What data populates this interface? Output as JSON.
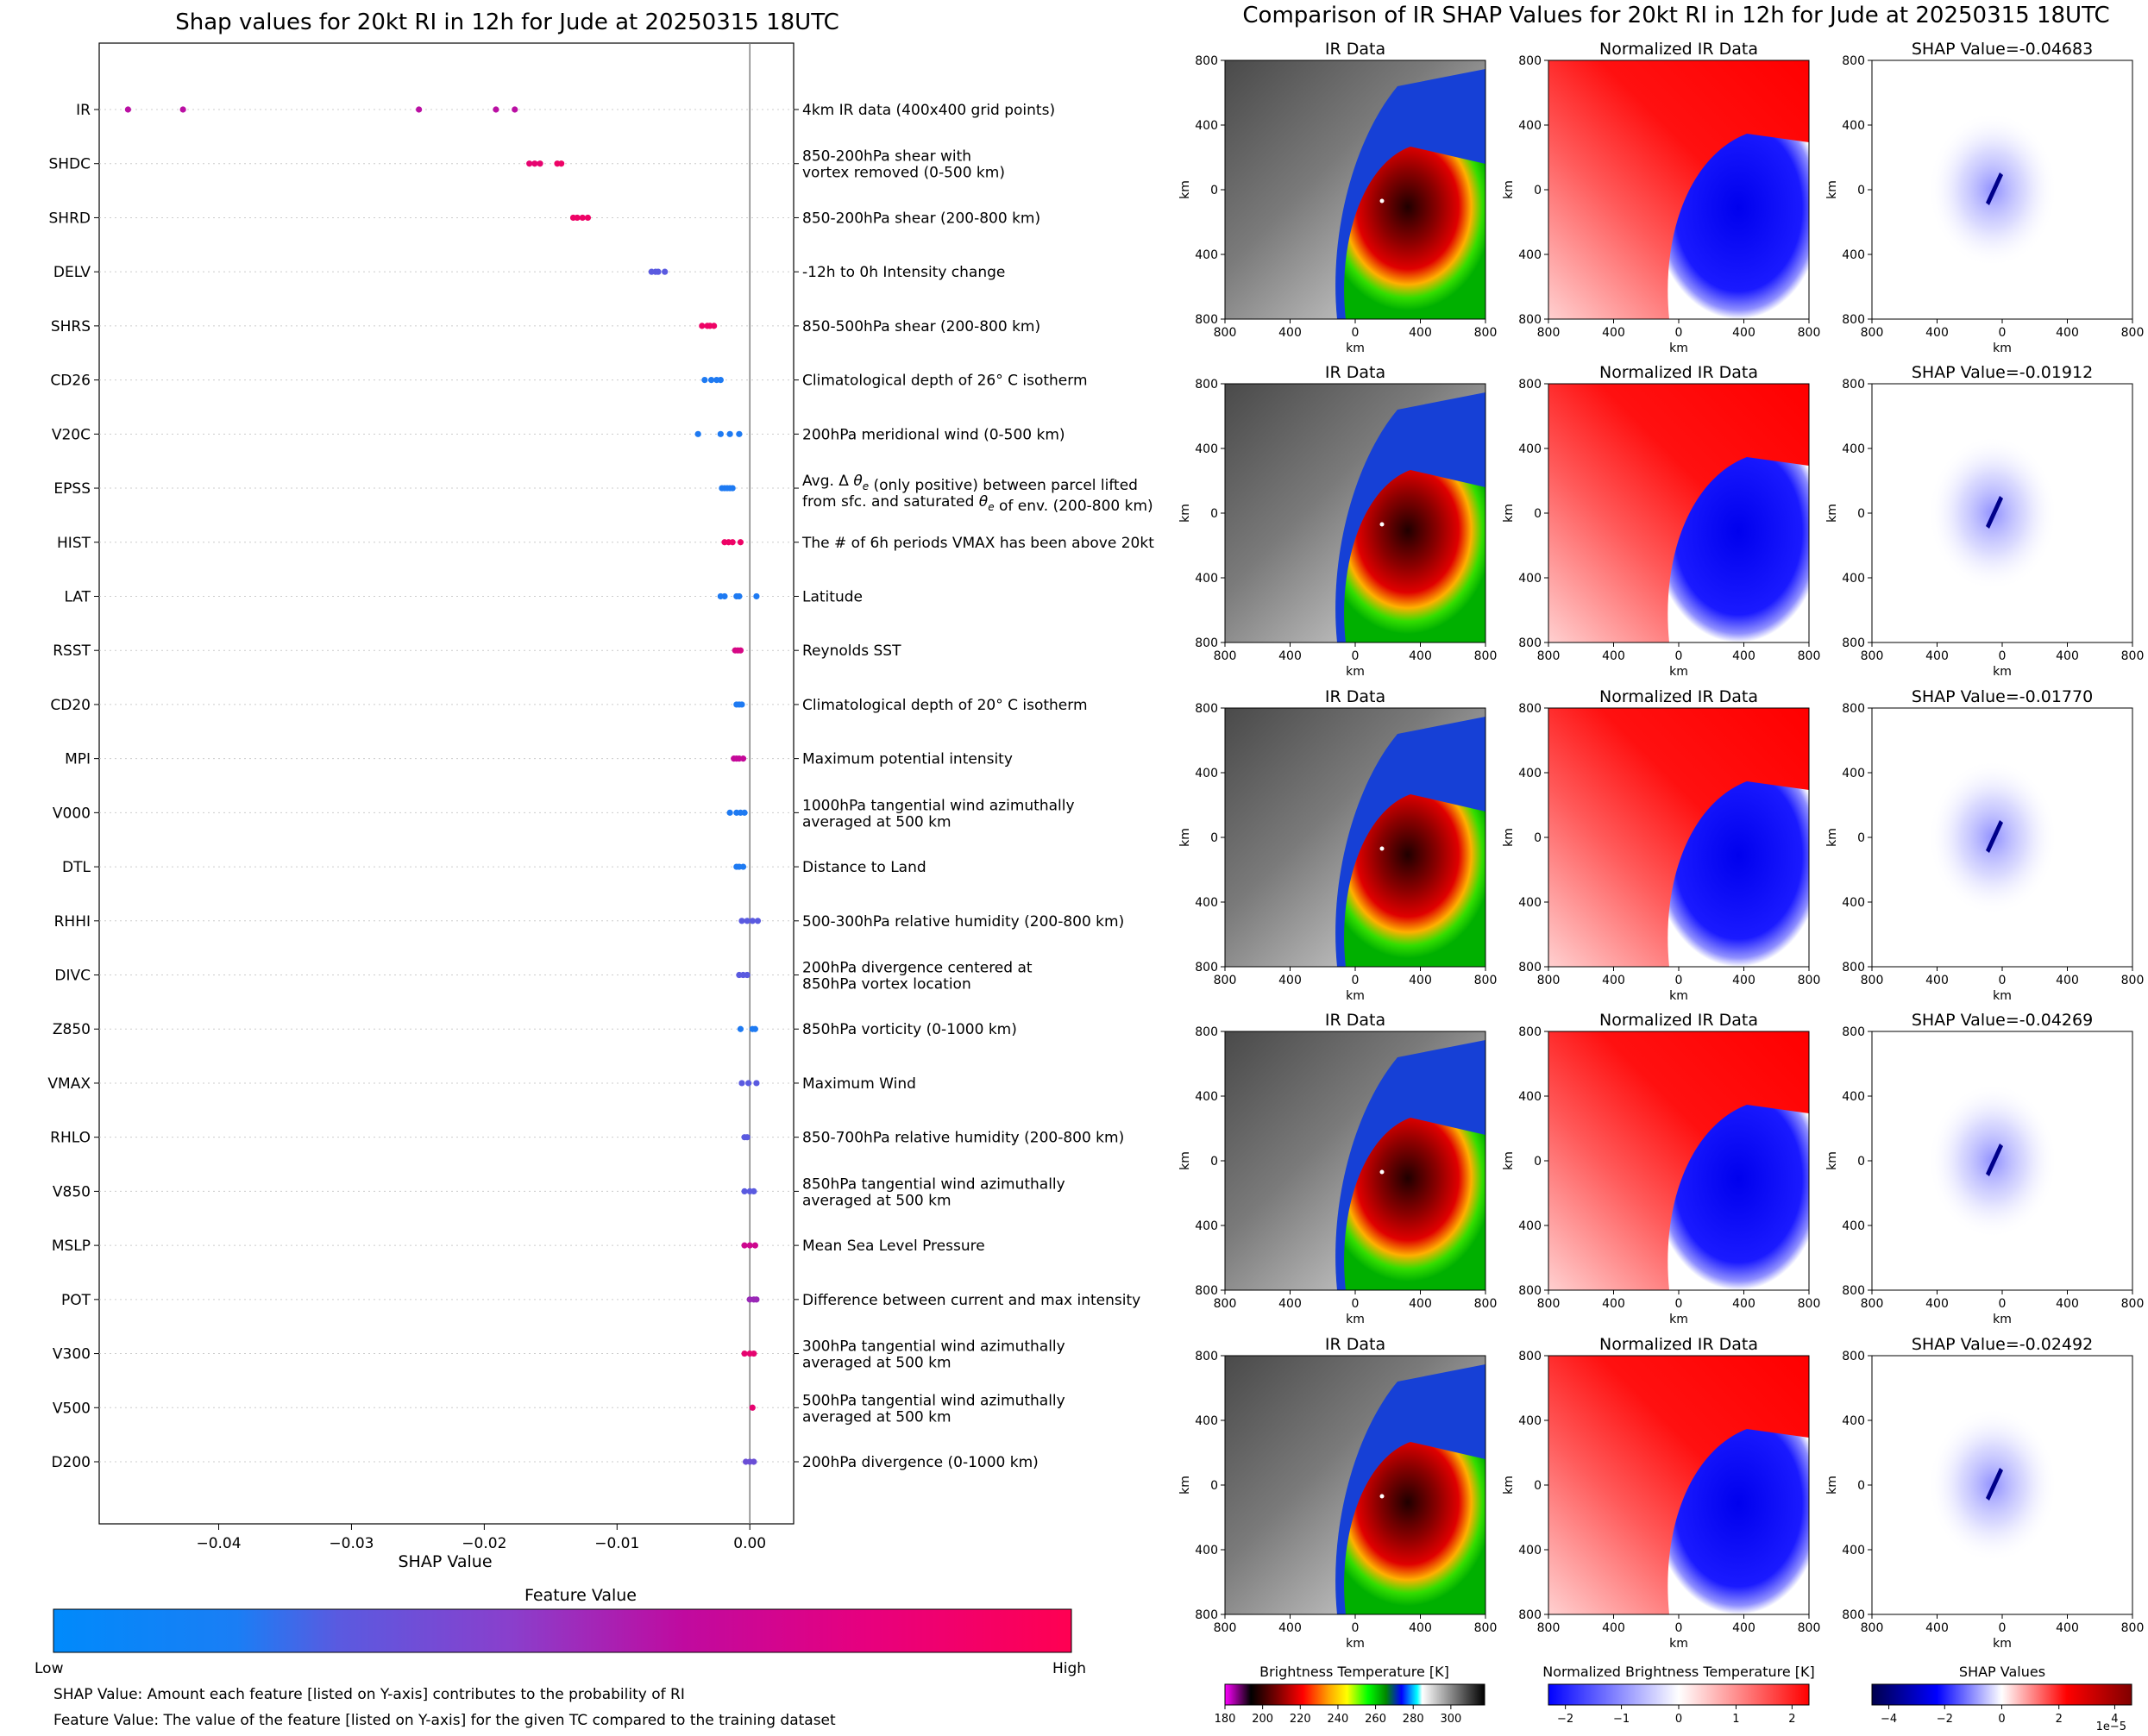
{
  "chart_data": [
    {
      "type": "scatter",
      "title": "Shap values for 20kt RI in 12h for Jude at 20250315 18UTC",
      "xlabel": "SHAP Value",
      "ylabel": "",
      "xlim": [
        -0.049,
        0.0033
      ],
      "xticks": [
        -0.04,
        -0.03,
        -0.02,
        -0.01,
        0.0
      ],
      "xtick_labels": [
        "−0.04",
        "−0.03",
        "−0.02",
        "−0.01",
        "0.00"
      ],
      "grid": false,
      "colorbar": {
        "title": "Feature Value",
        "low_label": "Low",
        "high_label": "High",
        "colors": [
          "#008afb",
          "#7a4fd6",
          "#c00a9f",
          "#ff0052"
        ]
      },
      "features": [
        {
          "name": "IR",
          "description": "4km IR data (400x400 grid points)",
          "values": [
            -0.04683,
            -0.04269,
            -0.02492,
            -0.01912,
            -0.0177
          ],
          "level": [
            0.6,
            0.6,
            0.6,
            0.6,
            0.6
          ]
        },
        {
          "name": "SHDC",
          "description": "850-200hPa shear with\nvortex removed (0-500 km)",
          "values": [
            -0.0166,
            -0.0162,
            -0.0158,
            -0.0145,
            -0.0142
          ],
          "level": [
            0.85,
            0.85,
            0.85,
            0.9,
            0.9
          ]
        },
        {
          "name": "SHRD",
          "description": "850-200hPa shear (200-800 km)",
          "values": [
            -0.0133,
            -0.013,
            -0.0126,
            -0.0122
          ],
          "level": [
            0.9,
            0.9,
            0.9,
            0.9
          ]
        },
        {
          "name": "DELV",
          "description": "-12h to 0h Intensity change",
          "values": [
            -0.0074,
            -0.0071,
            -0.0069,
            -0.0064
          ],
          "level": [
            0.3,
            0.3,
            0.3,
            0.3
          ]
        },
        {
          "name": "SHRS",
          "description": "850-500hPa shear (200-800 km)",
          "values": [
            -0.0036,
            -0.0032,
            -0.003,
            -0.0027
          ],
          "level": [
            0.9,
            0.9,
            0.9,
            0.9
          ]
        },
        {
          "name": "CD26",
          "description": "Climatological depth of 26° C isotherm",
          "values": [
            -0.0034,
            -0.0029,
            -0.0025,
            -0.0022
          ],
          "level": [
            0.1,
            0.1,
            0.1,
            0.1
          ]
        },
        {
          "name": "V20C",
          "description": "200hPa meridional wind (0-500 km)",
          "values": [
            -0.0039,
            -0.0022,
            -0.0015,
            -0.0008
          ],
          "level": [
            0.1,
            0.1,
            0.1,
            0.1
          ]
        },
        {
          "name": "EPSS",
          "description": "Avg. Δ θe (only positive) between parcel lifted\nfrom sfc. and saturated θe of env. (200-800 km)",
          "values": [
            -0.0021,
            -0.0019,
            -0.0017,
            -0.0015,
            -0.0013
          ],
          "level": [
            0.1,
            0.1,
            0.1,
            0.1,
            0.1
          ]
        },
        {
          "name": "HIST",
          "description": "The # of 6h periods VMAX has been above 20kt",
          "values": [
            -0.0019,
            -0.0016,
            -0.0013,
            -0.0007
          ],
          "level": [
            0.9,
            0.9,
            0.9,
            0.9
          ]
        },
        {
          "name": "LAT",
          "description": "Latitude",
          "values": [
            -0.0022,
            -0.0019,
            -0.001,
            -0.0008,
            0.0005
          ],
          "level": [
            0.1,
            0.1,
            0.1,
            0.1,
            0.1
          ]
        },
        {
          "name": "RSST",
          "description": "Reynolds SST",
          "values": [
            -0.0011,
            -0.0009,
            -0.0007
          ],
          "level": [
            0.75,
            0.75,
            0.75
          ]
        },
        {
          "name": "CD20",
          "description": "Climatological depth of 20° C isotherm",
          "values": [
            -0.001,
            -0.0008,
            -0.0006
          ],
          "level": [
            0.1,
            0.1,
            0.1
          ]
        },
        {
          "name": "MPI",
          "description": "Maximum potential intensity",
          "values": [
            -0.0012,
            -0.001,
            -0.0008,
            -0.0005
          ],
          "level": [
            0.65,
            0.65,
            0.65,
            0.65
          ]
        },
        {
          "name": "V000",
          "description": "1000hPa tangential wind azimuthally\naveraged at 500 km",
          "values": [
            -0.0015,
            -0.001,
            -0.0007,
            -0.0004
          ],
          "level": [
            0.1,
            0.1,
            0.1,
            0.1
          ]
        },
        {
          "name": "DTL",
          "description": "Distance to Land",
          "values": [
            -0.001,
            -0.0008,
            -0.0005
          ],
          "level": [
            0.1,
            0.1,
            0.1
          ]
        },
        {
          "name": "RHHI",
          "description": "500-300hPa relative humidity (200-800 km)",
          "values": [
            -0.0006,
            -0.0002,
            0.0002,
            0.0006
          ],
          "level": [
            0.3,
            0.3,
            0.3,
            0.3
          ]
        },
        {
          "name": "DIVC",
          "description": "200hPa divergence centered at\n850hPa vortex location",
          "values": [
            -0.0008,
            -0.0005,
            -0.0002
          ],
          "level": [
            0.3,
            0.3,
            0.3
          ]
        },
        {
          "name": "Z850",
          "description": "850hPa vorticity (0-1000 km)",
          "values": [
            -0.0007,
            0.0002,
            0.0004
          ],
          "level": [
            0.1,
            0.1,
            0.1
          ]
        },
        {
          "name": "VMAX",
          "description": "Maximum Wind",
          "values": [
            -0.0006,
            -0.0001,
            0.0005
          ],
          "level": [
            0.3,
            0.3,
            0.3
          ]
        },
        {
          "name": "RHLO",
          "description": "850-700hPa relative humidity (200-800 km)",
          "values": [
            -0.0004,
            -0.0002
          ],
          "level": [
            0.3,
            0.3
          ]
        },
        {
          "name": "V850",
          "description": "850hPa tangential wind azimuthally\naveraged at 500 km",
          "values": [
            -0.0004,
            0.0,
            0.0003
          ],
          "level": [
            0.3,
            0.3,
            0.3
          ]
        },
        {
          "name": "MSLP",
          "description": "Mean Sea Level Pressure",
          "values": [
            -0.0004,
            0.0,
            0.0004
          ],
          "level": [
            0.7,
            0.7,
            0.7
          ]
        },
        {
          "name": "POT",
          "description": "Difference between current and max intensity",
          "values": [
            0.0,
            0.0003,
            0.0005
          ],
          "level": [
            0.5,
            0.5,
            0.5
          ]
        },
        {
          "name": "V300",
          "description": "300hPa tangential wind azimuthally\naveraged at 500 km",
          "values": [
            -0.0004,
            0.0,
            0.0003
          ],
          "level": [
            0.85,
            0.85,
            0.85
          ]
        },
        {
          "name": "V500",
          "description": "500hPa tangential wind azimuthally\naveraged at 500 km",
          "values": [
            0.0002
          ],
          "level": [
            0.85
          ]
        },
        {
          "name": "D200",
          "description": "200hPa divergence (0-1000 km)",
          "values": [
            -0.0003,
            0.0,
            0.0003
          ],
          "level": [
            0.35,
            0.35,
            0.35
          ]
        }
      ],
      "footnotes": [
        "SHAP Value: Amount each feature [listed on Y-axis] contributes to the probability of RI",
        "Feature Value: The value of the feature [listed on Y-axis] for the given TC compared to the training dataset"
      ]
    },
    {
      "type": "heatmap",
      "title": "Comparison of IR SHAP Values for 20kt RI in 12h for Jude at 20250315 18UTC",
      "panel_titles": [
        "IR Data",
        "Normalized IR Data"
      ],
      "shap_titles": [
        "SHAP Value=-0.04683",
        "SHAP Value=-0.01912",
        "SHAP Value=-0.01770",
        "SHAP Value=-0.04269",
        "SHAP Value=-0.02492"
      ],
      "xlabel": "km",
      "ylabel": "km",
      "tick_labels": [
        "800",
        "400",
        "0",
        "400",
        "800"
      ],
      "colorbars": [
        {
          "title": "Brightness Temperature [K]",
          "ticks": [
            "180",
            "200",
            "220",
            "240",
            "260",
            "280",
            "300"
          ]
        },
        {
          "title": "Normalized Brightness Temperature [K]",
          "ticks": [
            "−2",
            "−1",
            "0",
            "1",
            "2"
          ]
        },
        {
          "title": "SHAP Values",
          "ticks": [
            "−4",
            "−2",
            "0",
            "2",
            "4"
          ],
          "offset": "1e−5"
        }
      ]
    }
  ]
}
